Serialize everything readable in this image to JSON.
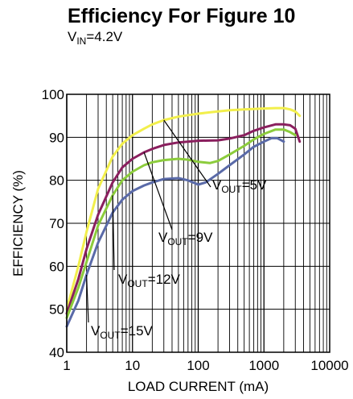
{
  "header": {
    "title": "Efficiency For Figure 10",
    "subtitle_main": "V",
    "subtitle_sub": "IN",
    "subtitle_value": "=4.2V"
  },
  "chart_data": {
    "type": "line",
    "title": "Efficiency For Figure 10",
    "xlabel": "LOAD CURRENT (mA)",
    "ylabel": "EFFICIENCY (%)",
    "x_scale": "log",
    "xlim": [
      1,
      10000
    ],
    "ylim": [
      40,
      100
    ],
    "x_ticks": [
      1,
      10,
      100,
      1000,
      10000
    ],
    "x_tick_labels": [
      "1",
      "10",
      "100",
      "1000",
      "10000"
    ],
    "y_ticks": [
      40,
      50,
      60,
      70,
      80,
      90,
      100
    ],
    "y_tick_labels": [
      "40",
      "50",
      "60",
      "70",
      "80",
      "90",
      "100"
    ],
    "grid": true,
    "series": [
      {
        "name": "5V",
        "label_main": "V",
        "label_sub": "OUT",
        "label_value": "=5V",
        "color": "#f2ef4c",
        "x": [
          1,
          1.5,
          2,
          3,
          5,
          7,
          10,
          15,
          20,
          30,
          50,
          100,
          200,
          300,
          500,
          1000,
          1500,
          2000,
          2500,
          3000,
          3500
        ],
        "y": [
          50,
          60,
          68,
          78,
          85.5,
          88.5,
          90.5,
          92,
          93,
          94,
          94.8,
          95.5,
          96,
          96.3,
          96.5,
          96.7,
          96.8,
          96.8,
          96.5,
          96,
          95
        ]
      },
      {
        "name": "9V",
        "label_main": "V",
        "label_sub": "OUT",
        "label_value": "=9V",
        "color": "#8a1f5e",
        "x": [
          1,
          1.5,
          2,
          3,
          5,
          7,
          10,
          15,
          20,
          30,
          50,
          100,
          200,
          300,
          500,
          700,
          1000,
          1500,
          2000,
          2500,
          3000,
          3500
        ],
        "y": [
          49,
          57,
          64,
          72,
          79.5,
          83,
          85,
          86.5,
          87.3,
          88.2,
          88.8,
          89.2,
          89.3,
          89.7,
          90.5,
          91.5,
          92.3,
          93,
          93,
          92.8,
          92,
          89
        ]
      },
      {
        "name": "12V",
        "label_main": "V",
        "label_sub": "OUT",
        "label_value": "=12V",
        "color": "#8ccc3c",
        "x": [
          1,
          1.5,
          2,
          3,
          5,
          7,
          10,
          15,
          20,
          30,
          50,
          70,
          100,
          150,
          200,
          300,
          500,
          700,
          1000,
          1500,
          2000,
          2500,
          3000
        ],
        "y": [
          48,
          55,
          61,
          69.5,
          76.5,
          80,
          82,
          83.5,
          84.2,
          84.7,
          85,
          84.8,
          84.3,
          84,
          84.5,
          86,
          88,
          89.5,
          90.8,
          91.8,
          91.8,
          91.2,
          90.5
        ]
      },
      {
        "name": "15V",
        "label_main": "V",
        "label_sub": "OUT",
        "label_value": "=15V",
        "color": "#5a6aa8",
        "x": [
          1,
          1.5,
          2,
          3,
          5,
          7,
          10,
          15,
          20,
          30,
          50,
          70,
          100,
          130,
          200,
          300,
          500,
          700,
          1000,
          1300,
          1600,
          2000
        ],
        "y": [
          46,
          52,
          58,
          65.5,
          72.5,
          75.5,
          77.5,
          78.8,
          79.5,
          80.3,
          80.5,
          80,
          79,
          79.5,
          81.5,
          83.5,
          86,
          87.8,
          89,
          89.8,
          89.8,
          89
        ]
      }
    ]
  }
}
